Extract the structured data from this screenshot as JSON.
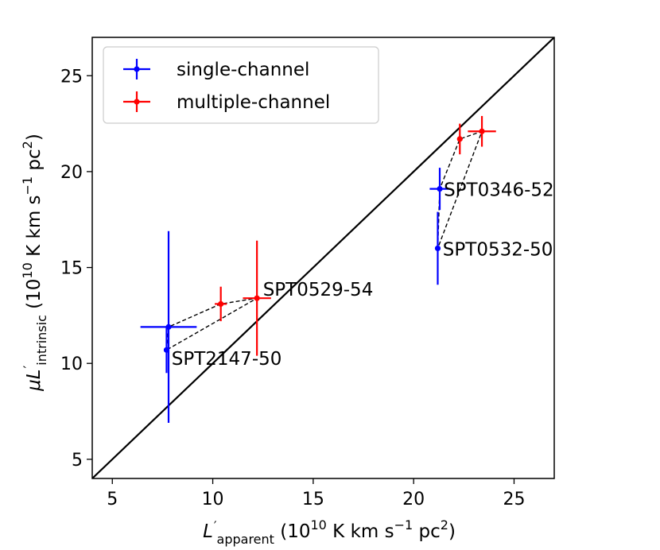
{
  "chart_data": {
    "type": "scatter",
    "xlabel": {
      "main": "L",
      "prime": "′",
      "sub": "apparent",
      "units_open": " (10",
      "units_exp": "10",
      "units_mid": " K km s",
      "units_exp2": "−1",
      "units_end": " pc",
      "units_exp3": "2",
      "units_close": ")"
    },
    "ylabel": {
      "mu": "μ",
      "main": "L",
      "prime": "′",
      "sub": "intrinsic",
      "units_open": " (10",
      "units_exp": "10",
      "units_mid": " K km s",
      "units_exp2": "−1",
      "units_end": " pc",
      "units_exp3": "2",
      "units_close": ")"
    },
    "xlim": [
      4,
      27
    ],
    "ylim": [
      4,
      27
    ],
    "xticks": [
      5,
      10,
      15,
      20,
      25
    ],
    "yticks": [
      5,
      10,
      15,
      20,
      25
    ],
    "identity_line": true,
    "legend": {
      "placement": "top-left",
      "entries": [
        {
          "label": "single-channel",
          "color": "#0000ff"
        },
        {
          "label": "multiple-channel",
          "color": "#ff0000"
        }
      ]
    },
    "series": [
      {
        "name": "single-channel",
        "color": "#0000ff",
        "points": [
          {
            "x": 7.8,
            "y": 11.9,
            "xerr": 1.4,
            "yerr": 5.0
          },
          {
            "x": 7.7,
            "y": 10.7,
            "xerr": 0,
            "yerr": 1.2
          },
          {
            "x": 21.3,
            "y": 19.1,
            "xerr": 0.5,
            "yerr": 1.1
          },
          {
            "x": 21.2,
            "y": 16.0,
            "xerr": 0.1,
            "yerr": 1.9
          }
        ]
      },
      {
        "name": "multiple-channel",
        "color": "#ff0000",
        "points": [
          {
            "x": 10.4,
            "y": 13.1,
            "xerr": 0.3,
            "yerr": 0.9
          },
          {
            "x": 12.2,
            "y": 13.4,
            "xerr": 0.7,
            "yerr": 3.0
          },
          {
            "x": 22.3,
            "y": 21.7,
            "xerr": 0.1,
            "yerr": 0.8
          },
          {
            "x": 23.4,
            "y": 22.1,
            "xerr": 0.7,
            "yerr": 0.8
          }
        ]
      }
    ],
    "connectors": [
      [
        [
          7.7,
          10.7
        ],
        [
          7.8,
          11.9
        ],
        [
          10.4,
          13.1
        ],
        [
          12.2,
          13.4
        ],
        [
          7.7,
          10.7
        ]
      ],
      [
        [
          21.2,
          16.0
        ],
        [
          21.3,
          19.1
        ],
        [
          22.3,
          21.7
        ],
        [
          23.4,
          22.1
        ],
        [
          21.2,
          16.0
        ]
      ]
    ],
    "annotations": [
      {
        "text": "SPT0346-52",
        "x": 21.5,
        "y": 19.1
      },
      {
        "text": "SPT0532-50",
        "x": 21.45,
        "y": 16.0
      },
      {
        "text": "SPT0529-54",
        "x": 12.5,
        "y": 13.9
      },
      {
        "text": "SPT2147-50",
        "x": 7.95,
        "y": 10.3
      }
    ]
  }
}
